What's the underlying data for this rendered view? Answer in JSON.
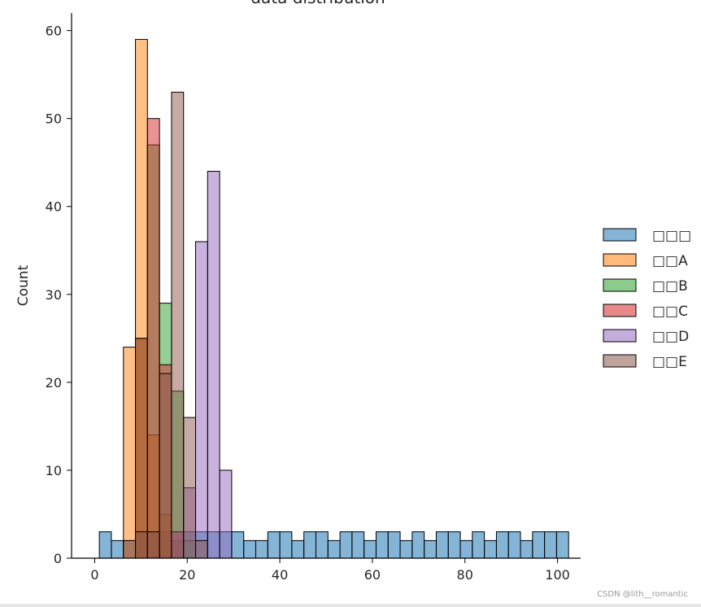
{
  "chart_data": {
    "type": "bar",
    "title": "data distribution",
    "xlabel": "",
    "ylabel": "Count",
    "xlim": [
      -5,
      105
    ],
    "ylim": [
      0,
      62
    ],
    "xticks": [
      0,
      20,
      40,
      60,
      80,
      100
    ],
    "yticks": [
      0,
      10,
      20,
      30,
      40,
      50,
      60
    ],
    "bin_width": 2.6,
    "bin_start": 1.0,
    "legend_position": "right",
    "series": [
      {
        "name": "□□□",
        "color": "#1f77b4",
        "counts": [
          3,
          3,
          2,
          2,
          3,
          3,
          3,
          2,
          3,
          3,
          3,
          3,
          3,
          3,
          2,
          2,
          3,
          3,
          2,
          3,
          3,
          2,
          3,
          3,
          2,
          3,
          3,
          2,
          3,
          3,
          3,
          2,
          3,
          3,
          2,
          3,
          2,
          3,
          2,
          3,
          3,
          2,
          3,
          3,
          2,
          3,
          3,
          2,
          3,
          3,
          3,
          2,
          3,
          3,
          2,
          3,
          3,
          2,
          3,
          3,
          2,
          3,
          3,
          2,
          3,
          3,
          2,
          3,
          3,
          2,
          3,
          3,
          2,
          3,
          3,
          2,
          3,
          3,
          2,
          3,
          3,
          2,
          3,
          3,
          2,
          3,
          3,
          2,
          3,
          3,
          2,
          3,
          3,
          2,
          3,
          3,
          2,
          3,
          3,
          2
        ],
        "bins_shown": [
          3,
          2,
          2,
          3,
          3,
          3,
          2,
          3,
          3,
          3,
          3,
          3,
          2,
          2,
          3,
          3,
          2,
          3,
          3,
          2,
          3,
          3,
          2,
          3,
          3,
          2,
          3,
          2,
          3,
          3,
          2,
          3,
          2,
          3,
          3,
          2,
          3,
          3,
          3
        ],
        "note": ""
      },
      {
        "name": "□□A",
        "color": "#ff7f0e",
        "bins": [
          [
            6.2,
            24
          ],
          [
            8.8,
            59
          ],
          [
            11.4,
            14
          ],
          [
            14.0,
            5
          ],
          [
            16.6,
            2
          ]
        ]
      },
      {
        "name": "□□B",
        "color": "#2ca02c",
        "bins": [
          [
            8.8,
            25
          ],
          [
            11.4,
            47
          ],
          [
            14.0,
            29
          ],
          [
            16.6,
            19
          ],
          [
            19.2,
            2
          ]
        ]
      },
      {
        "name": "□□C",
        "color": "#d62728",
        "bins": [
          [
            8.8,
            25
          ],
          [
            11.4,
            50
          ],
          [
            14.0,
            22
          ],
          [
            16.6,
            3
          ]
        ]
      },
      {
        "name": "□□D",
        "color": "#9467bd",
        "bins": [
          [
            16.6,
            3
          ],
          [
            19.2,
            8
          ],
          [
            21.8,
            36
          ],
          [
            24.4,
            44
          ],
          [
            27.0,
            10
          ]
        ]
      },
      {
        "name": "□□E",
        "color": "#8c564b",
        "bins": [
          [
            6.2,
            2
          ],
          [
            8.8,
            3
          ],
          [
            11.4,
            3
          ],
          [
            14.0,
            21
          ],
          [
            16.6,
            53
          ],
          [
            19.2,
            16
          ],
          [
            21.8,
            2
          ]
        ]
      }
    ]
  },
  "watermark": "CSDN @lith__romantic"
}
